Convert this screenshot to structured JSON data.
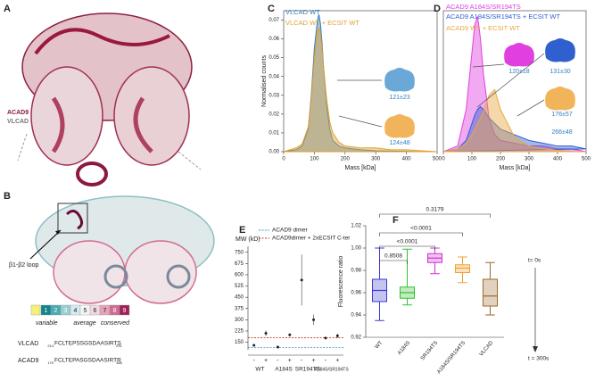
{
  "panels": {
    "A": {
      "label": "A",
      "legend": [
        "ACAD9",
        "VLCAD"
      ]
    },
    "B": {
      "label": "B",
      "callout": "β1-β2 loop",
      "scale": {
        "levels": [
          1,
          2,
          3,
          4,
          5,
          6,
          7,
          8,
          9
        ],
        "labels": [
          "variable",
          "average",
          "conserved"
        ]
      },
      "alignment": [
        {
          "name": "VLCAD",
          "start": "214",
          "sequence": "FCLTEPSSGSDAASIRTS",
          "end": "231"
        },
        {
          "name": "ACAD9",
          "start": "170",
          "sequence": "FCLTEPASGSDAASIRTR",
          "end": "188"
        }
      ]
    }
  },
  "chart_data": [
    {
      "type": "line",
      "panel": "C",
      "x_label": "Mass [kDa]",
      "y_label": "Normalised counts",
      "x": [
        0,
        40,
        60,
        80,
        90,
        100,
        110,
        115,
        120,
        125,
        130,
        140,
        150,
        160,
        180,
        200,
        250,
        300,
        350,
        400,
        450,
        500
      ],
      "series": [
        {
          "name": "VLCAD WT",
          "color": "#2f7fc0",
          "values": [
            0,
            0.001,
            0.003,
            0.012,
            0.03,
            0.055,
            0.07,
            0.073,
            0.068,
            0.058,
            0.045,
            0.025,
            0.012,
            0.006,
            0.003,
            0.002,
            0.001,
            0.0005,
            0.0003,
            0.0002,
            0,
            0
          ]
        },
        {
          "name": "VLCAD WT + ECSIT WT",
          "color": "#e0a030",
          "values": [
            0,
            0.002,
            0.004,
            0.013,
            0.028,
            0.05,
            0.064,
            0.066,
            0.063,
            0.055,
            0.045,
            0.028,
            0.016,
            0.01,
            0.005,
            0.003,
            0.002,
            0.002,
            0.001,
            0.001,
            0.0005,
            0
          ]
        }
      ],
      "xlim": [
        0,
        500
      ],
      "xticks": [
        0,
        100,
        200,
        300,
        400,
        500
      ],
      "ylim": [
        0,
        0.075
      ],
      "yticks": [
        {
          "value": 0,
          "label": "0.00"
        },
        {
          "value": 0.01,
          "label": "0.01"
        },
        {
          "value": 0.02,
          "label": "0.02"
        },
        {
          "value": 0.03,
          "label": "0.03"
        },
        {
          "value": 0.04,
          "label": "0.04"
        },
        {
          "value": 0.05,
          "label": "0.05"
        },
        {
          "value": 0.06,
          "label": "0.06"
        },
        {
          "value": 0.07,
          "label": "0.07"
        }
      ],
      "annotations": [
        "121±23",
        "124±48"
      ]
    },
    {
      "type": "line",
      "panel": "D",
      "x_label": "Mass [kDa]",
      "x": [
        0,
        50,
        80,
        100,
        110,
        120,
        130,
        140,
        160,
        180,
        200,
        250,
        300,
        350,
        400,
        450,
        500
      ],
      "series": [
        {
          "name": "ACAD9 A184S/SR194TS",
          "color": "#e040e0",
          "values": [
            0,
            0.002,
            0.015,
            0.035,
            0.045,
            0.048,
            0.04,
            0.028,
            0.012,
            0.006,
            0.004,
            0.003,
            0.002,
            0.002,
            0.001,
            0.001,
            0
          ]
        },
        {
          "name": "ACAD9 A184S/SR194TS + ECSIT WT",
          "color": "#3060d0",
          "values": [
            0,
            0.001,
            0.004,
            0.01,
            0.013,
            0.015,
            0.016,
            0.015,
            0.012,
            0.01,
            0.008,
            0.006,
            0.004,
            0.003,
            0.002,
            0.002,
            0.001
          ]
        },
        {
          "name": "ACAD9 WT + ECSIT WT",
          "color": "#e8a840",
          "values": [
            0,
            0.001,
            0.003,
            0.006,
            0.008,
            0.01,
            0.012,
            0.014,
            0.02,
            0.022,
            0.015,
            0.005,
            0.002,
            0.001,
            0.0005,
            0,
            0
          ]
        }
      ],
      "xlim": [
        0,
        500
      ],
      "xticks": [
        0,
        100,
        200,
        300,
        400,
        500
      ],
      "ylim": [
        0,
        0.05
      ],
      "annotations": [
        "120±18",
        "131±30",
        "176±57",
        "266±48"
      ]
    },
    {
      "type": "scatter",
      "panel": "E",
      "y_label": "MW (kD)",
      "categories": [
        "-",
        "+",
        "-",
        "+",
        "-",
        "+",
        "-",
        "+"
      ],
      "groups": [
        "WT",
        "A184S",
        "SR194TS",
        "A184S/SR194TS"
      ],
      "values": [
        130,
        210,
        118,
        200,
        565,
        300,
        178,
        193
      ],
      "errors": [
        5,
        20,
        3,
        10,
        170,
        35,
        5,
        15
      ],
      "color": "#222222",
      "lines": [
        {
          "name": "ACAD9 dimer",
          "value": 115,
          "color": "#3a8fc8"
        },
        {
          "name": "ACAD9dimer + 2xECSIT C-ter",
          "value": 180,
          "color": "#c0392b"
        }
      ],
      "ylim": [
        100,
        790
      ],
      "yticks": [
        150,
        225,
        300,
        375,
        450,
        525,
        600,
        675,
        750
      ]
    },
    {
      "type": "box",
      "panel": "F",
      "y_label": "Fluorescence ratio",
      "categories": [
        "WT",
        "A184S",
        "SR194TS",
        "A184S/SR194TS",
        "VLCAD"
      ],
      "colors": [
        "#3a3ad0",
        "#30c030",
        "#d030d0",
        "#f0a030",
        "#9a6a2a"
      ],
      "min": [
        0.935,
        0.949,
        0.977,
        0.969,
        0.94
      ],
      "q1": [
        0.952,
        0.955,
        0.987,
        0.978,
        0.948
      ],
      "median": [
        0.962,
        0.96,
        0.991,
        0.982,
        0.957
      ],
      "q3": [
        0.972,
        0.965,
        0.995,
        0.985,
        0.972
      ],
      "max": [
        1.0,
        0.999,
        1.0,
        0.992,
        0.987
      ],
      "ylim": [
        0.92,
        1.02
      ],
      "yticks": [
        0.92,
        0.94,
        0.96,
        0.98,
        {
          "value": 1.0,
          "label": "1.00"
        },
        1.02
      ],
      "annotations": [
        "0.8508",
        "<0.0001",
        "<0.0001",
        "0.3179"
      ],
      "time_labels": [
        "t= 0s",
        "t = 300s"
      ]
    }
  ]
}
